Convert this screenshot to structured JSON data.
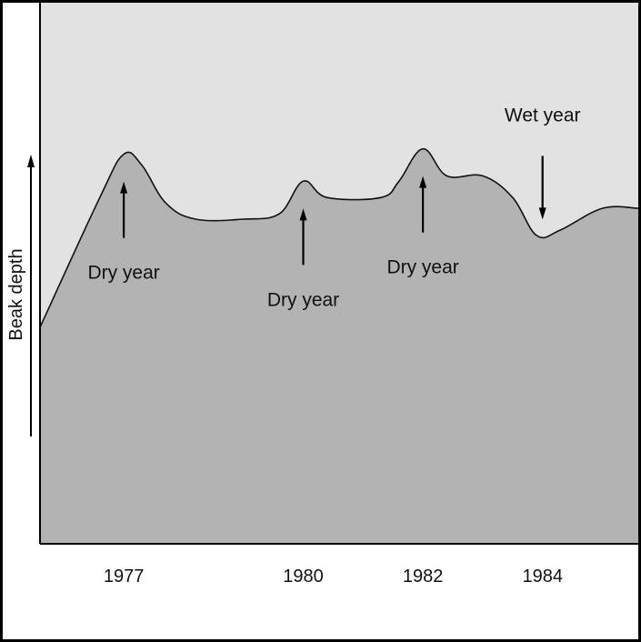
{
  "chart_data": {
    "type": "area",
    "title": "",
    "xlabel": "",
    "ylabel": "Beak depth",
    "x_ticks": [
      "1977",
      "1980",
      "1982",
      "1984"
    ],
    "y_ticks": [],
    "grid": false,
    "legend": "none",
    "colors": {
      "plot_background": "#e2e2e2",
      "area_fill": "#b3b3b3",
      "line": "#111111",
      "frame": "#000000"
    },
    "series": [
      {
        "values_description_free": true,
        "x": [
          1975.6,
          1976.6,
          1977.0,
          1977.3,
          1977.7,
          1978.2,
          1979.0,
          1979.6,
          1980.0,
          1980.4,
          1981.3,
          1981.6,
          1982.0,
          1982.4,
          1983.0,
          1983.5,
          1983.9,
          1984.3,
          1985.0,
          1985.6
        ],
        "y": [
          0.4,
          0.64,
          0.72,
          0.7,
          0.63,
          0.6,
          0.6,
          0.61,
          0.67,
          0.64,
          0.64,
          0.67,
          0.73,
          0.68,
          0.68,
          0.64,
          0.57,
          0.58,
          0.62,
          0.62
        ]
      }
    ],
    "annotations": [
      {
        "text": "Dry year",
        "x": 1977.0,
        "direction": "up"
      },
      {
        "text": "Dry year",
        "x": 1980.0,
        "direction": "up"
      },
      {
        "text": "Dry year",
        "x": 1982.0,
        "direction": "up"
      },
      {
        "text": "Wet year",
        "x": 1984.0,
        "direction": "down"
      }
    ],
    "xlim": [
      1975.6,
      1985.6
    ],
    "ylim": [
      0,
      1
    ]
  }
}
